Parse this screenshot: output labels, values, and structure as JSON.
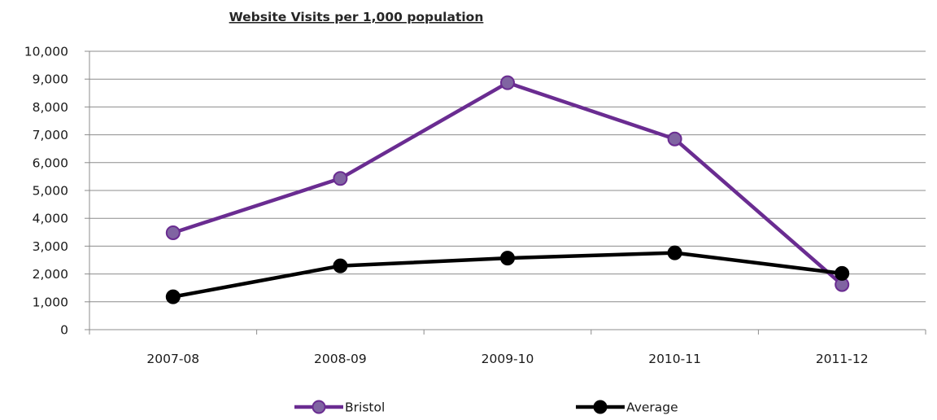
{
  "chart_data": {
    "type": "line",
    "title": "Website Visits per 1,000 population",
    "xlabel": "",
    "ylabel": "",
    "categories": [
      "2007-08",
      "2008-09",
      "2009-10",
      "2010-11",
      "2011-12"
    ],
    "ylim": [
      0,
      10000
    ],
    "yticks": [
      0,
      1000,
      2000,
      3000,
      4000,
      5000,
      6000,
      7000,
      8000,
      9000,
      10000
    ],
    "ytick_labels": [
      "0",
      "1,000",
      "2,000",
      "3,000",
      "4,000",
      "5,000",
      "6,000",
      "7,000",
      "8,000",
      "9,000",
      "10,000"
    ],
    "grid": true,
    "legend_position": "bottom",
    "series": [
      {
        "name": "Bristol",
        "values": [
          3480,
          5430,
          8870,
          6850,
          1620
        ],
        "color": "#6A2C91",
        "marker_fill": "#8064A2"
      },
      {
        "name": "Average",
        "values": [
          1180,
          2290,
          2570,
          2760,
          2020
        ],
        "color": "#000000",
        "marker_fill": "#000000"
      }
    ]
  }
}
